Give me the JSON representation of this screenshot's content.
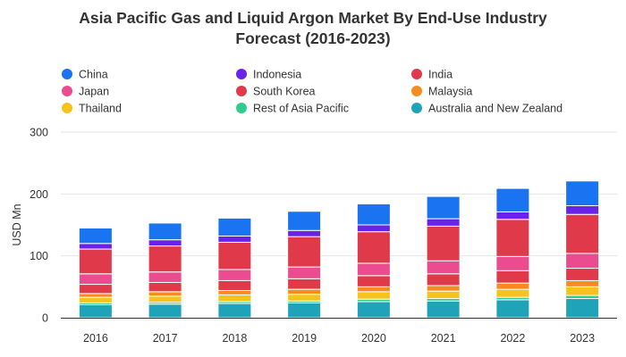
{
  "chart_data": {
    "type": "bar",
    "stacked": true,
    "title_lines": [
      "Asia Pacific Gas and Liquid Argon Market By End-Use Industry",
      "Forecast (2016-2023)"
    ],
    "xlabel": "",
    "ylabel": "USD Mn",
    "ylim": [
      0,
      300
    ],
    "yticks": [
      0,
      100,
      200,
      300
    ],
    "grid": true,
    "legend_position": "top",
    "categories": [
      "2016",
      "2017",
      "2018",
      "2019",
      "2020",
      "2021",
      "2022",
      "2023"
    ],
    "series": [
      {
        "name": "Australia and New Zealand",
        "color": "#1fa3b8",
        "values": [
          21,
          22,
          23,
          24,
          26,
          27,
          29,
          31
        ]
      },
      {
        "name": "Rest of Asia Pacific",
        "color": "#2ecc8f",
        "values": [
          3,
          3,
          3,
          3,
          4,
          4,
          4,
          5
        ]
      },
      {
        "name": "Thailand",
        "color": "#f6c21c",
        "values": [
          9,
          10,
          11,
          11,
          12,
          12,
          13,
          14
        ]
      },
      {
        "name": "Malaysia",
        "color": "#f68c1f",
        "values": [
          6,
          7,
          7,
          8,
          8,
          9,
          10,
          10
        ]
      },
      {
        "name": "South Korea",
        "color": "#e0394a",
        "values": [
          15,
          15,
          16,
          17,
          18,
          19,
          20,
          20
        ]
      },
      {
        "name": "Japan",
        "color": "#ea4c8f",
        "values": [
          17,
          17,
          18,
          19,
          20,
          21,
          23,
          24
        ]
      },
      {
        "name": "India",
        "color": "#e0394a",
        "values": [
          40,
          42,
          44,
          49,
          51,
          56,
          60,
          63
        ]
      },
      {
        "name": "Indonesia",
        "color": "#6a22e8",
        "values": [
          9,
          10,
          10,
          10,
          11,
          12,
          12,
          14
        ]
      },
      {
        "name": "China",
        "color": "#1a73f0",
        "values": [
          25,
          27,
          29,
          31,
          34,
          36,
          38,
          40
        ]
      }
    ],
    "legend": [
      {
        "name": "China",
        "color": "#1a73f0"
      },
      {
        "name": "Indonesia",
        "color": "#6a22e8"
      },
      {
        "name": "India",
        "color": "#e0394a"
      },
      {
        "name": "Japan",
        "color": "#ea4c8f"
      },
      {
        "name": "South Korea",
        "color": "#e0394a"
      },
      {
        "name": "Malaysia",
        "color": "#f68c1f"
      },
      {
        "name": "Thailand",
        "color": "#f6c21c"
      },
      {
        "name": "Rest of Asia Pacific",
        "color": "#2ecc8f"
      },
      {
        "name": "Australia and New Zealand",
        "color": "#1fa3b8"
      }
    ]
  }
}
